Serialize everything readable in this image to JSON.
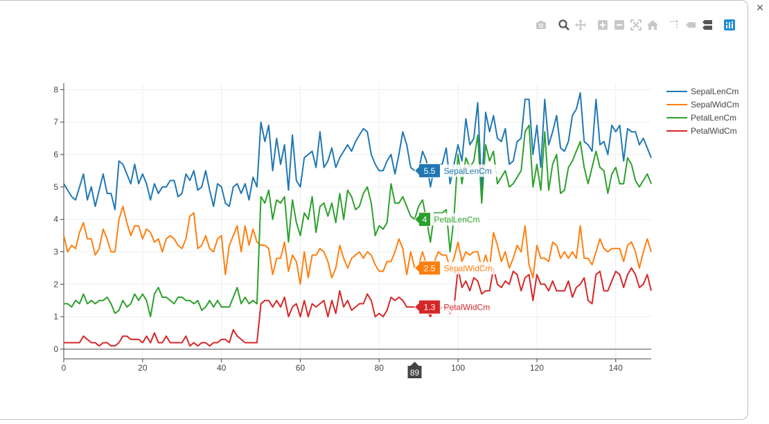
{
  "window": {
    "close_glyph": "×"
  },
  "modebar": {
    "buttons": [
      {
        "name": "camera-icon"
      },
      {
        "name": "zoom-icon"
      },
      {
        "name": "pan-icon"
      },
      {
        "name": "zoom-in-icon"
      },
      {
        "name": "zoom-out-icon"
      },
      {
        "name": "autoscale-icon"
      },
      {
        "name": "reset-axes-icon"
      },
      {
        "name": "spikelines-icon"
      },
      {
        "name": "hover-closest-icon"
      },
      {
        "name": "hover-compare-icon"
      },
      {
        "name": "plotly-logo-icon"
      }
    ],
    "active_color": "#1f8dd6",
    "inactive_color": "#c8c8c8"
  },
  "chart_data": {
    "type": "line",
    "title": "",
    "xlabel": "",
    "ylabel": "",
    "xlim": [
      0,
      149
    ],
    "ylim": [
      -0.3,
      8.2
    ],
    "x_ticks": [
      0,
      20,
      40,
      60,
      80,
      100,
      120,
      140
    ],
    "y_ticks": [
      0,
      1,
      2,
      3,
      4,
      5,
      6,
      7,
      8
    ],
    "grid": true,
    "legend_position": "top-right",
    "hover_x": 89,
    "series": [
      {
        "name": "SepalLenCm",
        "color": "#1f77b4",
        "hover_value": "5.5",
        "values": [
          5.1,
          4.9,
          4.7,
          4.6,
          5.0,
          5.4,
          4.6,
          5.0,
          4.4,
          4.9,
          5.4,
          4.8,
          4.8,
          4.3,
          5.8,
          5.7,
          5.4,
          5.1,
          5.7,
          5.1,
          5.4,
          5.1,
          4.6,
          5.1,
          4.8,
          5.0,
          5.0,
          5.2,
          5.2,
          4.7,
          4.8,
          5.4,
          5.2,
          5.5,
          4.9,
          5.0,
          5.5,
          4.9,
          4.4,
          5.1,
          5.0,
          4.5,
          4.4,
          5.0,
          5.1,
          4.8,
          5.1,
          4.6,
          5.3,
          5.0,
          7.0,
          6.4,
          6.9,
          5.5,
          6.5,
          5.7,
          6.3,
          4.9,
          6.6,
          5.2,
          5.0,
          5.9,
          6.0,
          6.1,
          5.6,
          6.7,
          5.6,
          5.8,
          6.2,
          5.6,
          5.9,
          6.1,
          6.3,
          6.1,
          6.4,
          6.6,
          6.8,
          6.7,
          6.0,
          5.7,
          5.5,
          5.5,
          5.8,
          6.0,
          5.4,
          6.0,
          6.7,
          6.3,
          5.6,
          5.5,
          5.5,
          6.1,
          5.8,
          5.0,
          5.6,
          5.7,
          5.7,
          6.2,
          5.1,
          5.7,
          6.3,
          5.8,
          7.1,
          6.3,
          6.5,
          7.6,
          4.9,
          7.3,
          6.7,
          7.2,
          6.5,
          6.4,
          6.8,
          5.7,
          5.8,
          6.4,
          6.5,
          7.7,
          7.7,
          6.0,
          6.9,
          5.6,
          7.7,
          6.3,
          6.7,
          7.2,
          6.2,
          6.1,
          6.4,
          7.2,
          7.4,
          7.9,
          6.4,
          6.3,
          6.1,
          7.7,
          6.3,
          6.4,
          6.0,
          6.9,
          6.7,
          6.9,
          5.8,
          6.8,
          6.7,
          6.7,
          6.3,
          6.5,
          6.2,
          5.9
        ]
      },
      {
        "name": "SepalWidCm",
        "color": "#ff7f0e",
        "hover_value": "2.5",
        "values": [
          3.5,
          3.0,
          3.2,
          3.1,
          3.6,
          3.9,
          3.4,
          3.4,
          2.9,
          3.1,
          3.7,
          3.4,
          3.0,
          3.0,
          4.0,
          4.4,
          3.9,
          3.5,
          3.8,
          3.8,
          3.4,
          3.7,
          3.6,
          3.3,
          3.4,
          3.0,
          3.4,
          3.5,
          3.4,
          3.2,
          3.1,
          3.4,
          4.1,
          4.2,
          3.1,
          3.2,
          3.5,
          3.1,
          3.0,
          3.4,
          3.5,
          2.3,
          3.2,
          3.5,
          3.8,
          3.0,
          3.8,
          3.2,
          3.7,
          3.3,
          3.2,
          3.2,
          3.1,
          2.3,
          2.8,
          2.8,
          3.3,
          2.4,
          2.9,
          2.7,
          2.0,
          3.0,
          2.2,
          2.9,
          2.9,
          3.1,
          3.0,
          2.7,
          2.2,
          2.5,
          3.2,
          2.8,
          2.5,
          2.8,
          2.9,
          3.0,
          2.8,
          3.0,
          2.9,
          2.6,
          2.4,
          2.4,
          2.7,
          2.7,
          3.0,
          3.4,
          3.1,
          2.3,
          3.0,
          2.5,
          2.6,
          3.0,
          2.6,
          2.3,
          2.7,
          3.0,
          2.9,
          2.9,
          2.5,
          2.8,
          3.3,
          2.7,
          3.0,
          2.9,
          3.0,
          3.0,
          2.5,
          2.9,
          2.5,
          3.6,
          3.2,
          2.7,
          3.0,
          2.5,
          2.8,
          3.2,
          3.0,
          3.8,
          2.6,
          2.2,
          3.2,
          2.8,
          2.8,
          2.7,
          3.3,
          3.2,
          2.8,
          3.0,
          2.8,
          3.0,
          2.8,
          3.8,
          2.8,
          2.8,
          2.6,
          3.0,
          3.4,
          3.1,
          3.0,
          3.1,
          3.1,
          3.1,
          2.7,
          3.2,
          3.3,
          3.0,
          2.5,
          3.0,
          3.4,
          3.0
        ]
      },
      {
        "name": "PetalLenCm",
        "color": "#2ca02c",
        "hover_value": "4",
        "values": [
          1.4,
          1.4,
          1.3,
          1.5,
          1.4,
          1.7,
          1.4,
          1.5,
          1.4,
          1.5,
          1.5,
          1.6,
          1.4,
          1.1,
          1.2,
          1.5,
          1.3,
          1.4,
          1.7,
          1.5,
          1.7,
          1.5,
          1.0,
          1.7,
          1.9,
          1.6,
          1.6,
          1.5,
          1.4,
          1.6,
          1.6,
          1.5,
          1.5,
          1.4,
          1.5,
          1.2,
          1.3,
          1.5,
          1.3,
          1.5,
          1.3,
          1.3,
          1.3,
          1.6,
          1.9,
          1.4,
          1.6,
          1.4,
          1.5,
          1.4,
          4.7,
          4.5,
          4.9,
          4.0,
          4.6,
          4.5,
          4.7,
          3.3,
          4.6,
          3.9,
          3.5,
          4.2,
          4.0,
          4.7,
          3.6,
          4.4,
          4.5,
          4.1,
          4.5,
          3.9,
          4.8,
          4.0,
          4.9,
          4.7,
          4.3,
          4.4,
          4.8,
          5.0,
          4.5,
          3.5,
          3.8,
          3.7,
          3.9,
          5.1,
          4.5,
          4.5,
          4.7,
          4.4,
          4.1,
          4.0,
          4.4,
          4.6,
          4.0,
          3.3,
          4.2,
          4.2,
          4.2,
          4.3,
          3.0,
          4.1,
          6.0,
          5.1,
          5.9,
          5.6,
          5.8,
          6.6,
          4.5,
          6.3,
          5.8,
          6.1,
          5.1,
          5.3,
          5.5,
          5.0,
          5.1,
          5.3,
          5.5,
          6.7,
          6.9,
          5.0,
          5.7,
          4.9,
          6.7,
          4.9,
          5.7,
          6.0,
          4.8,
          4.9,
          5.6,
          5.8,
          6.1,
          6.4,
          5.6,
          5.1,
          5.6,
          6.1,
          5.6,
          5.5,
          4.8,
          5.4,
          5.6,
          5.1,
          5.1,
          5.9,
          5.7,
          5.2,
          5.0,
          5.2,
          5.4,
          5.1
        ]
      },
      {
        "name": "PetalWidCm",
        "color": "#d62728",
        "hover_value": "1.3",
        "values": [
          0.2,
          0.2,
          0.2,
          0.2,
          0.2,
          0.4,
          0.3,
          0.2,
          0.2,
          0.1,
          0.2,
          0.2,
          0.1,
          0.1,
          0.2,
          0.4,
          0.4,
          0.3,
          0.3,
          0.3,
          0.2,
          0.4,
          0.2,
          0.5,
          0.2,
          0.2,
          0.4,
          0.2,
          0.2,
          0.2,
          0.2,
          0.4,
          0.1,
          0.2,
          0.1,
          0.2,
          0.2,
          0.1,
          0.2,
          0.2,
          0.3,
          0.3,
          0.2,
          0.6,
          0.4,
          0.3,
          0.2,
          0.2,
          0.2,
          0.2,
          1.4,
          1.5,
          1.5,
          1.3,
          1.5,
          1.3,
          1.6,
          1.0,
          1.3,
          1.4,
          1.0,
          1.5,
          1.0,
          1.4,
          1.3,
          1.4,
          1.5,
          1.0,
          1.5,
          1.1,
          1.8,
          1.3,
          1.5,
          1.2,
          1.3,
          1.4,
          1.4,
          1.7,
          1.5,
          1.0,
          1.1,
          1.0,
          1.2,
          1.6,
          1.5,
          1.6,
          1.5,
          1.3,
          1.3,
          1.3,
          1.2,
          1.4,
          1.2,
          1.0,
          1.3,
          1.2,
          1.3,
          1.3,
          1.1,
          1.3,
          2.5,
          1.9,
          2.1,
          1.8,
          2.2,
          2.1,
          1.7,
          1.8,
          1.8,
          2.5,
          2.0,
          1.9,
          2.1,
          2.0,
          2.4,
          2.3,
          1.8,
          2.2,
          2.3,
          1.5,
          2.3,
          2.0,
          2.0,
          1.8,
          2.1,
          1.8,
          1.8,
          1.8,
          2.1,
          1.6,
          1.9,
          2.0,
          2.2,
          1.5,
          1.4,
          2.3,
          2.4,
          1.8,
          1.8,
          2.1,
          2.4,
          2.3,
          1.9,
          2.3,
          2.5,
          2.3,
          1.9,
          2.0,
          2.3,
          1.8
        ]
      }
    ]
  }
}
